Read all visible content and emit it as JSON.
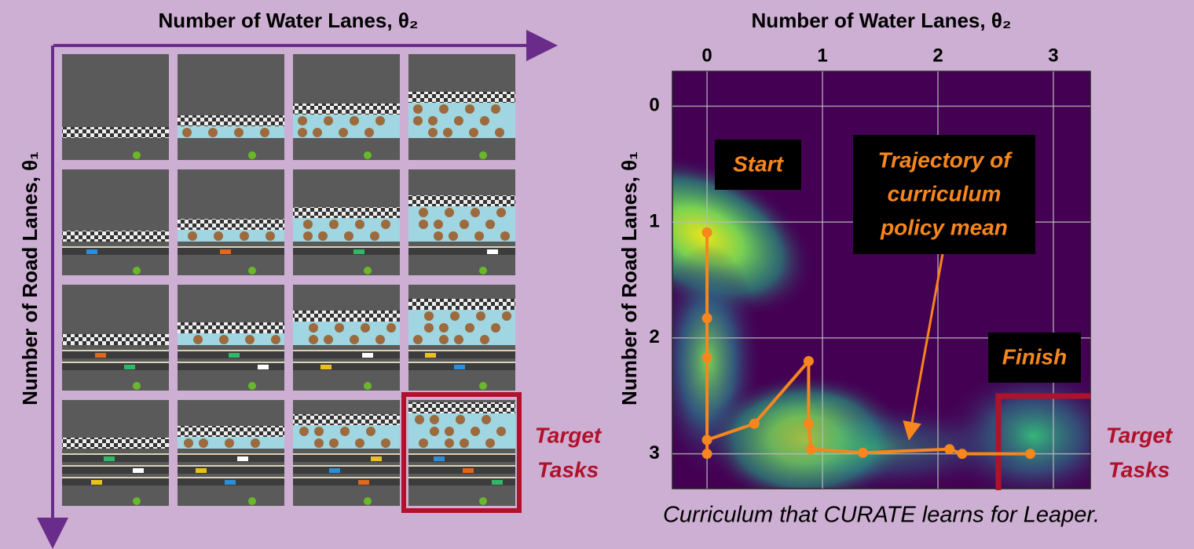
{
  "left_panel": {
    "x_label": "Number of Water Lanes, θ₂",
    "y_label": "Number of Road Lanes, θ₁",
    "target_label": [
      "Target",
      "Tasks"
    ]
  },
  "chart_data": {
    "type": "line",
    "x_label": "Number of Water Lanes, θ₂",
    "y_label": "Number of Road Lanes, θ₁",
    "x": [
      0,
      0,
      0,
      0,
      0,
      0.41,
      0.88,
      0.88,
      0.9,
      1.35,
      2.1,
      2.21,
      2.8
    ],
    "values": [
      1.09,
      1.83,
      2.17,
      3.0,
      2.88,
      2.74,
      2.2,
      2.74,
      2.96,
      2.99,
      2.96,
      3.0,
      3.0
    ],
    "color": "#f7861c",
    "xlim": [
      -0.3,
      3.32
    ],
    "xticks": [
      0,
      1,
      2,
      3
    ],
    "ylim": [
      -0.3,
      3.3
    ],
    "yticks": [
      0,
      1,
      2,
      3
    ],
    "y_inverted": true,
    "grid": true,
    "annotations": {
      "start": "Start",
      "finish": "Finish",
      "trajectory": [
        "Trajectory of",
        "curriculum",
        "policy mean"
      ],
      "target": [
        "Target",
        "Tasks"
      ]
    },
    "caption": "Curriculum that CURATE learns for Leaper."
  }
}
